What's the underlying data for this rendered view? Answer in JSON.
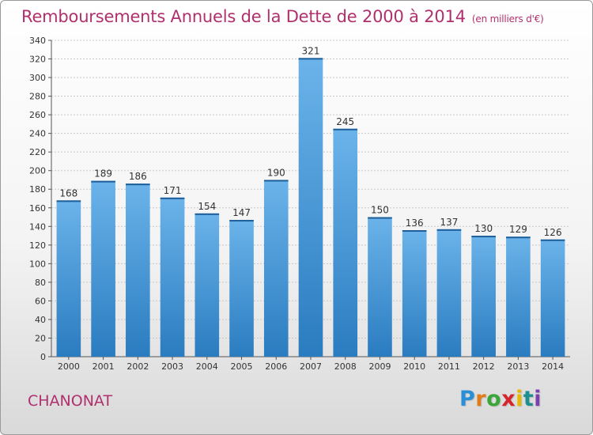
{
  "title": "Remboursements Annuels de la Dette de 2000 à 2014",
  "subtitle": "(en milliers d'€)",
  "commune": "CHANONAT",
  "logo": {
    "letters": [
      "P",
      "r",
      "o",
      "x",
      "i",
      "t",
      "i"
    ],
    "colors": [
      "#2a8fd6",
      "#e07d1a",
      "#3aa63a",
      "#d4262b",
      "#e8b800",
      "#1e8f8f",
      "#7b3fb0"
    ]
  },
  "colors": {
    "title": "#b0306e",
    "bar_light": "#6bb3ea",
    "bar_dark": "#2a7cc0",
    "grid": "#c8c8c8"
  },
  "chart_data": {
    "type": "bar",
    "title": "Remboursements Annuels de la Dette de 2000 à 2014",
    "subtitle": "(en milliers d'€)",
    "xlabel": "",
    "ylabel": "",
    "categories": [
      "2000",
      "2001",
      "2002",
      "2003",
      "2004",
      "2005",
      "2006",
      "2007",
      "2008",
      "2009",
      "2010",
      "2011",
      "2012",
      "2013",
      "2014"
    ],
    "values": [
      168,
      189,
      186,
      171,
      154,
      147,
      190,
      321,
      245,
      150,
      136,
      137,
      130,
      129,
      126
    ],
    "ylim": [
      0,
      340
    ],
    "yticks": [
      0,
      20,
      40,
      60,
      80,
      100,
      120,
      140,
      160,
      180,
      200,
      220,
      240,
      260,
      280,
      300,
      320,
      340
    ],
    "grid": true,
    "legend": "none"
  }
}
